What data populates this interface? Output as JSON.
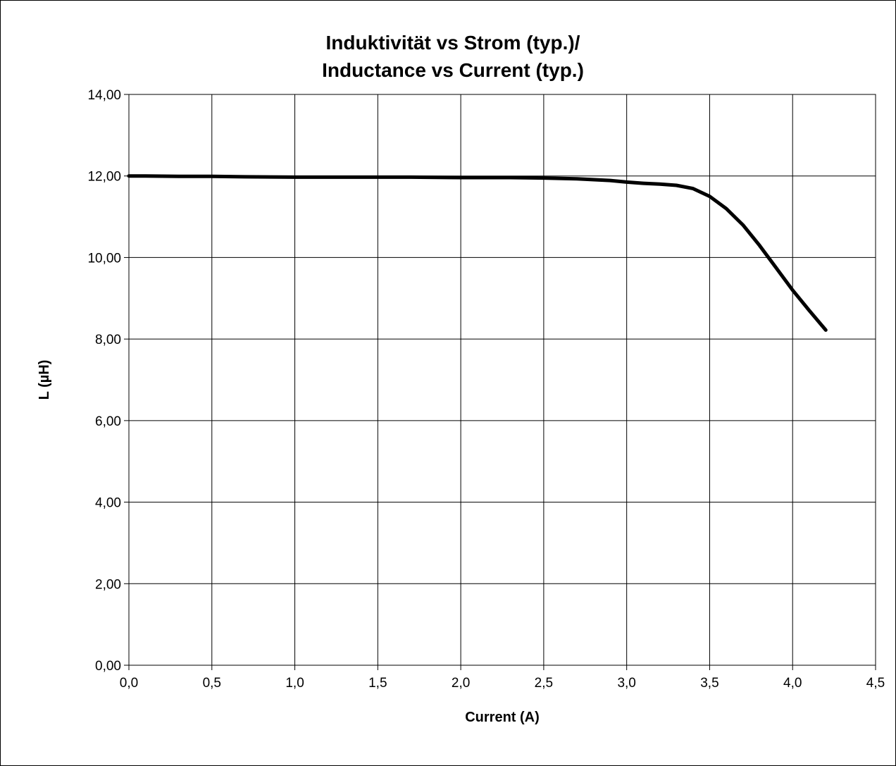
{
  "chart_data": {
    "type": "line",
    "title_line1": "Induktivität vs Strom (typ.)/",
    "title_line2": "Inductance vs Current (typ.)",
    "xlabel": "Current (A)",
    "ylabel": "L (µH)",
    "xlim": [
      0,
      4.5
    ],
    "ylim": [
      0,
      14
    ],
    "x_ticks": [
      0,
      0.5,
      1.0,
      1.5,
      2.0,
      2.5,
      3.0,
      3.5,
      4.0,
      4.5
    ],
    "x_tick_labels": [
      "0,0",
      "0,5",
      "1,0",
      "1,5",
      "2,0",
      "2,5",
      "3,0",
      "3,5",
      "4,0",
      "4,5"
    ],
    "y_ticks": [
      0,
      2,
      4,
      6,
      8,
      10,
      12,
      14
    ],
    "y_tick_labels": [
      "0,00",
      "2,00",
      "4,00",
      "6,00",
      "8,00",
      "10,00",
      "12,00",
      "14,00"
    ],
    "grid": true,
    "legend": "none",
    "line_color": "#000000",
    "series": [
      {
        "x": [
          0.0,
          0.1,
          0.3,
          0.5,
          0.7,
          1.0,
          1.3,
          1.5,
          1.7,
          2.0,
          2.3,
          2.5,
          2.7,
          2.9,
          3.0,
          3.1,
          3.2,
          3.3,
          3.4,
          3.5,
          3.6,
          3.7,
          3.8,
          3.9,
          4.0,
          4.1,
          4.2
        ],
        "y": [
          12.0,
          12.0,
          11.99,
          11.99,
          11.98,
          11.97,
          11.97,
          11.97,
          11.97,
          11.96,
          11.96,
          11.95,
          11.93,
          11.89,
          11.85,
          11.82,
          11.8,
          11.77,
          11.69,
          11.5,
          11.2,
          10.8,
          10.3,
          9.75,
          9.2,
          8.7,
          8.22
        ]
      }
    ]
  }
}
